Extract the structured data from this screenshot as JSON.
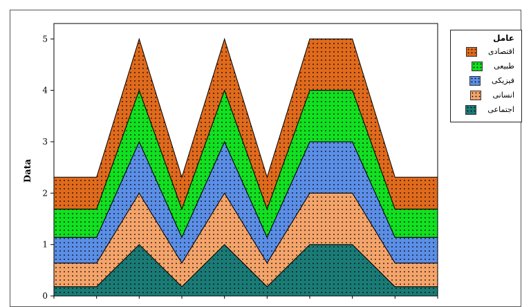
{
  "chart_data": {
    "type": "area",
    "stacked": true,
    "ylabel": "Data",
    "xlabel": "",
    "ylim": [
      0,
      5.3
    ],
    "y_ticks": [
      0,
      1,
      2,
      3,
      4,
      5
    ],
    "x": [
      0,
      1,
      2,
      3,
      4,
      5,
      6,
      7,
      8,
      9
    ],
    "legend_title": "عامل",
    "legend_position": "right",
    "pattern": "dots",
    "series": [
      {
        "name": "اجتماعی",
        "color": "#1a7b76",
        "values": [
          0.18,
          0.18,
          1.0,
          0.18,
          1.0,
          0.18,
          1.0,
          1.0,
          0.18,
          0.18
        ]
      },
      {
        "name": "انسانی",
        "color": "#f4a46a",
        "values": [
          0.46,
          0.46,
          1.0,
          0.46,
          1.0,
          0.46,
          1.0,
          1.0,
          0.46,
          0.46
        ]
      },
      {
        "name": "فیزیکی",
        "color": "#5b8ee6",
        "values": [
          0.5,
          0.5,
          1.0,
          0.5,
          1.0,
          0.5,
          1.0,
          1.0,
          0.5,
          0.5
        ]
      },
      {
        "name": "طبیعی",
        "color": "#11e020",
        "values": [
          0.55,
          0.55,
          1.0,
          0.55,
          1.0,
          0.55,
          1.0,
          1.0,
          0.55,
          0.55
        ]
      },
      {
        "name": "اقتصادی",
        "color": "#e06a1c",
        "values": [
          0.62,
          0.62,
          1.0,
          0.62,
          1.0,
          0.62,
          1.0,
          1.0,
          0.62,
          0.62
        ]
      }
    ]
  }
}
